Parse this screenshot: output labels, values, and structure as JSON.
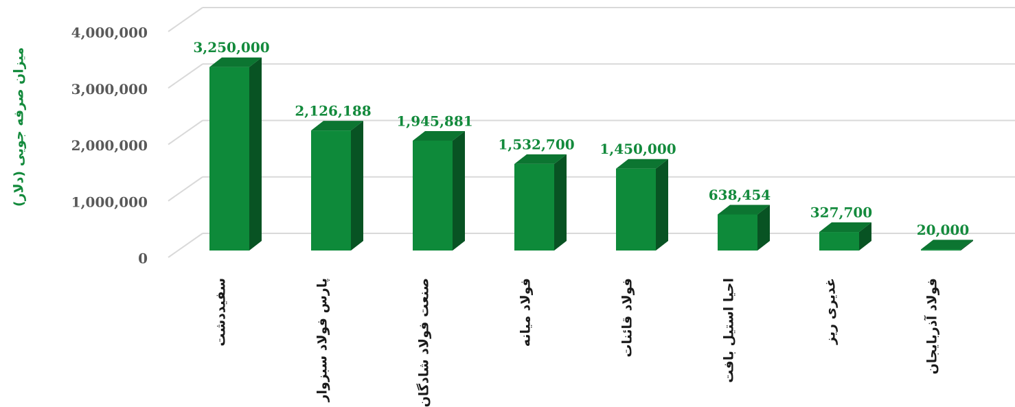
{
  "chart_data": {
    "type": "bar3d",
    "ylabel": "میزان صرفه جویی (دلار)",
    "categories": [
      "سفیددشت",
      "پارس فولاد سبزوار",
      "صنعت فولاد شادگان",
      "فولاد میانه",
      "فولاد قائنات",
      "احیا استیل بافت",
      "غدیری ریز",
      "فولاد آذربایجان"
    ],
    "values": [
      3250000,
      2126188,
      1945881,
      1532700,
      1450000,
      638454,
      327700,
      20000
    ],
    "value_labels": [
      "3,250,000",
      "2,126,188",
      "1,945,881",
      "1,532,700",
      "1,450,000",
      "638,454",
      "327,700",
      "20,000"
    ],
    "color": "#0e8a3a",
    "ylim": [
      0,
      4000000
    ],
    "yticks": [
      0,
      {
        "value": 1000000,
        "label": "1,000,000"
      },
      {
        "value": 2000000,
        "label": "2,000,000"
      },
      {
        "value": 3000000,
        "label": "3,000,000"
      },
      {
        "value": 4000000,
        "label": "4,000,000"
      }
    ],
    "grid": true
  }
}
